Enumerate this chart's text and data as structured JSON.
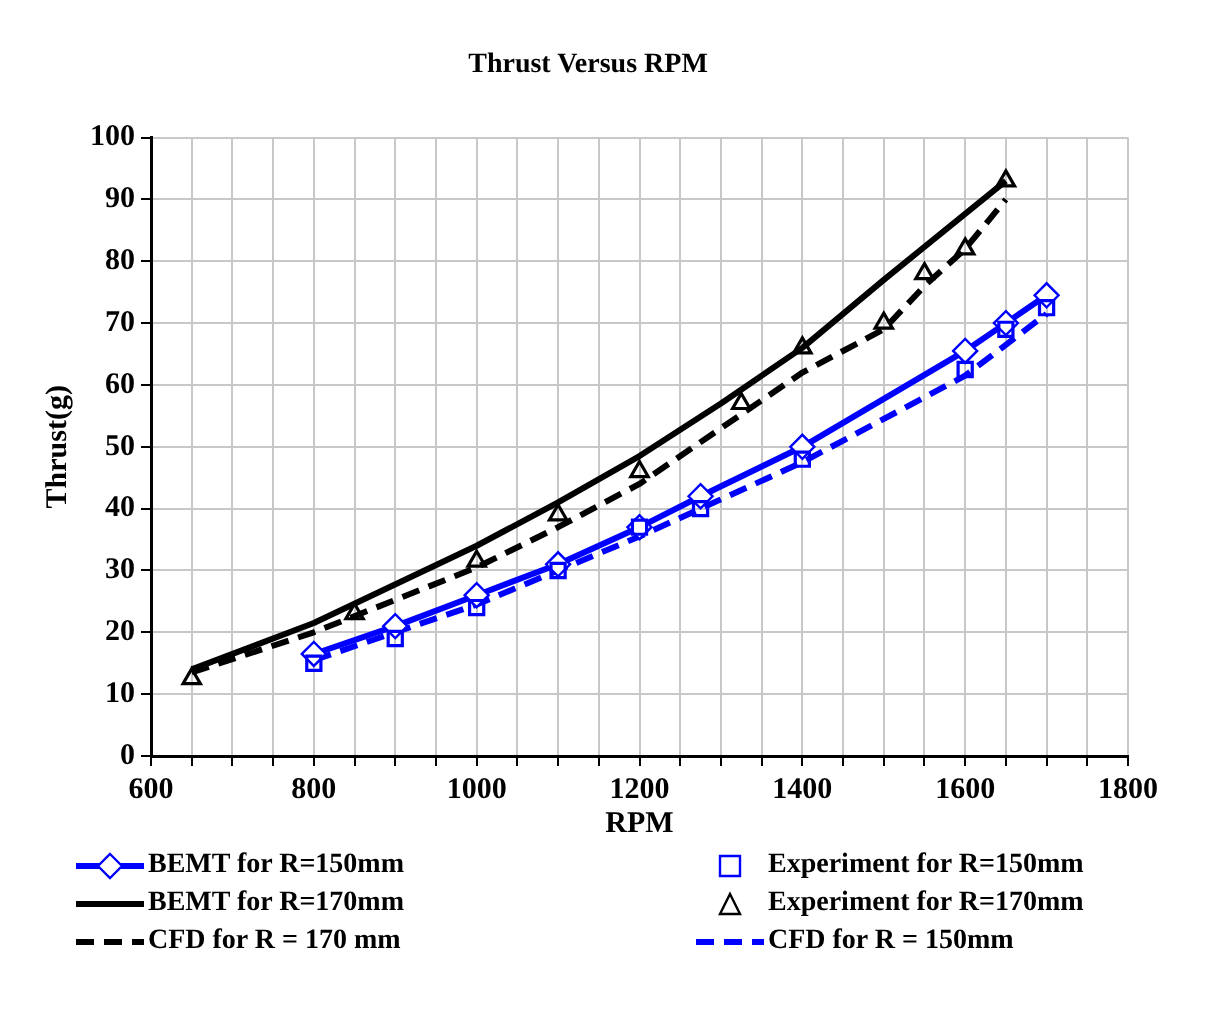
{
  "chart_data": {
    "type": "line",
    "title": "Thrust Versus RPM",
    "xlabel": "RPM",
    "ylabel": "Thrust(g)",
    "xlim": [
      600,
      1800
    ],
    "xticks": [
      600,
      {
        "value": 650,
        "label": null
      },
      {
        "value": 700,
        "label": null
      },
      {
        "value": 750,
        "label": null
      },
      800,
      {
        "value": 850,
        "label": null
      },
      {
        "value": 900,
        "label": null
      },
      {
        "value": 950,
        "label": null
      },
      1000,
      {
        "value": 1050,
        "label": null
      },
      {
        "value": 1100,
        "label": null
      },
      {
        "value": 1150,
        "label": null
      },
      1200,
      {
        "value": 1250,
        "label": null
      },
      {
        "value": 1300,
        "label": null
      },
      {
        "value": 1350,
        "label": null
      },
      1400,
      {
        "value": 1450,
        "label": null
      },
      {
        "value": 1500,
        "label": null
      },
      {
        "value": 1550,
        "label": null
      },
      1600,
      {
        "value": 1650,
        "label": null
      },
      {
        "value": 1700,
        "label": null
      },
      {
        "value": 1750,
        "label": null
      },
      1800
    ],
    "ylim": [
      0,
      100
    ],
    "yticks": [
      0,
      10,
      20,
      30,
      40,
      50,
      60,
      70,
      80,
      90,
      100
    ],
    "grid": true,
    "legend": "bottom",
    "series": [
      {
        "name": "BEMT for R=150mm",
        "type": "line",
        "color": "#0000ff",
        "marker": "diamond",
        "line_style": "solid",
        "x": [
          800,
          900,
          1000,
          1100,
          1200,
          1275,
          1400,
          1600,
          1650,
          1700
        ],
        "values": [
          16.5,
          21,
          26,
          31,
          37,
          42,
          50,
          65.5,
          70,
          74.5
        ]
      },
      {
        "name": "Experiment for R=150mm",
        "type": "scatter",
        "color": "#0000ff",
        "marker": "square",
        "x": [
          800,
          900,
          1000,
          1100,
          1200,
          1275,
          1400,
          1600,
          1650,
          1700
        ],
        "values": [
          15,
          19,
          24,
          30,
          37,
          40,
          48,
          62.5,
          69,
          72.5
        ]
      },
      {
        "name": "BEMT for R=170mm",
        "type": "line",
        "color": "#000000",
        "marker": "none",
        "line_style": "solid",
        "x": [
          650,
          800,
          1000,
          1100,
          1200,
          1300,
          1400,
          1500,
          1650
        ],
        "values": [
          14,
          21.5,
          34,
          41,
          48.5,
          57,
          66,
          77,
          93
        ]
      },
      {
        "name": "Experiment for R=170mm",
        "type": "scatter",
        "color": "#000000",
        "marker": "triangle",
        "x": [
          650,
          850,
          1000,
          1100,
          1200,
          1325,
          1400,
          1500,
          1550,
          1600,
          1650
        ],
        "values": [
          12.5,
          23,
          31.5,
          39,
          46,
          57,
          66,
          70,
          78,
          82,
          93
        ]
      },
      {
        "name": "CFD for R = 170 mm",
        "type": "line",
        "color": "#000000",
        "marker": "none",
        "line_style": "dashed",
        "x": [
          650,
          800,
          1000,
          1100,
          1200,
          1300,
          1400,
          1500,
          1550,
          1600,
          1650
        ],
        "values": [
          13.5,
          20,
          30.5,
          37,
          44,
          53,
          62,
          69,
          76,
          82,
          90
        ]
      },
      {
        "name": "CFD for R = 150mm",
        "type": "line",
        "color": "#0000ff",
        "marker": "none",
        "line_style": "dashed",
        "x": [
          800,
          1000,
          1200,
          1400,
          1600,
          1700
        ],
        "values": [
          15.5,
          24.5,
          35.5,
          47.5,
          61.5,
          71.5
        ]
      }
    ]
  }
}
